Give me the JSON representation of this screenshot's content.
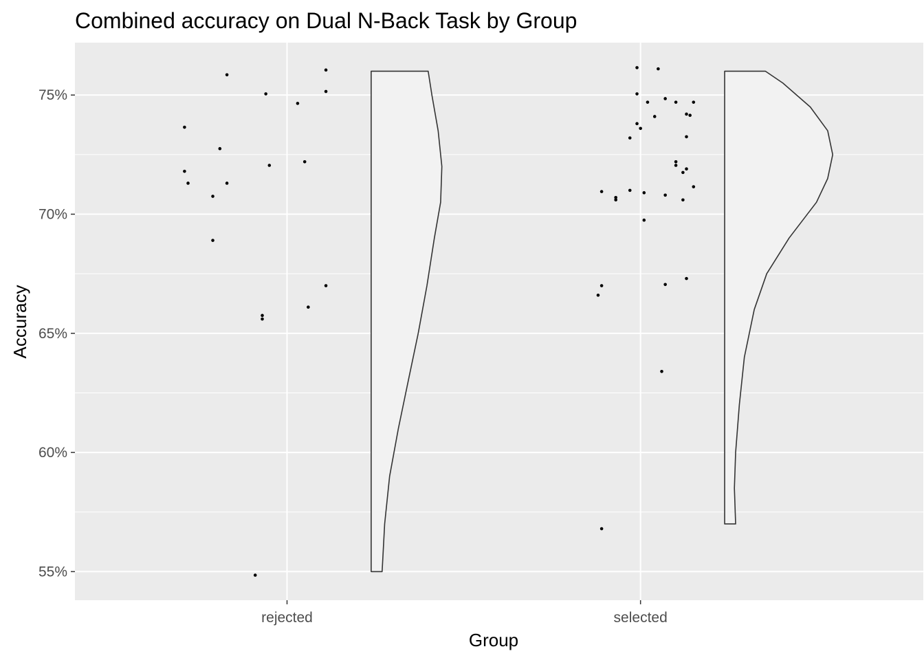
{
  "chart_data": {
    "type": "raincloud",
    "title": "Combined accuracy on Dual N-Back Task by Group",
    "xlabel": "Group",
    "ylabel": "Accuracy",
    "categories": [
      "rejected",
      "selected"
    ],
    "ylim": [
      53.8,
      77.2
    ],
    "yticks": [
      55,
      60,
      65,
      70,
      75
    ],
    "ytick_labels": [
      "55%",
      "60%",
      "65%",
      "70%",
      "75%"
    ],
    "grid": true,
    "panel_color": "#ebebeb",
    "violin_fill": "#f2f2f2",
    "violin_line": "#333333",
    "point_color": "#000000",
    "series": [
      {
        "category": "rejected",
        "points": [
          {
            "jitter": -0.29,
            "y": 73.65
          },
          {
            "jitter": -0.17,
            "y": 75.85
          },
          {
            "jitter": -0.06,
            "y": 75.05
          },
          {
            "jitter": 0.03,
            "y": 74.65
          },
          {
            "jitter": 0.11,
            "y": 76.05
          },
          {
            "jitter": 0.11,
            "y": 75.15
          },
          {
            "jitter": -0.29,
            "y": 71.8
          },
          {
            "jitter": -0.28,
            "y": 71.3
          },
          {
            "jitter": -0.19,
            "y": 72.75
          },
          {
            "jitter": -0.21,
            "y": 70.75
          },
          {
            "jitter": -0.17,
            "y": 71.3
          },
          {
            "jitter": -0.05,
            "y": 72.05
          },
          {
            "jitter": 0.05,
            "y": 72.2
          },
          {
            "jitter": -0.21,
            "y": 68.9
          },
          {
            "jitter": 0.11,
            "y": 67.0
          },
          {
            "jitter": -0.07,
            "y": 65.75
          },
          {
            "jitter": -0.07,
            "y": 65.6
          },
          {
            "jitter": 0.06,
            "y": 66.1
          },
          {
            "jitter": -0.09,
            "y": 54.85
          }
        ],
        "density": [
          {
            "y": 55.0,
            "d": 0.02
          },
          {
            "y": 57.0,
            "d": 0.04
          },
          {
            "y": 59.0,
            "d": 0.08
          },
          {
            "y": 61.0,
            "d": 0.15
          },
          {
            "y": 63.0,
            "d": 0.23
          },
          {
            "y": 65.0,
            "d": 0.31
          },
          {
            "y": 67.0,
            "d": 0.38
          },
          {
            "y": 69.0,
            "d": 0.44
          },
          {
            "y": 70.5,
            "d": 0.49
          },
          {
            "y": 72.0,
            "d": 0.5
          },
          {
            "y": 73.5,
            "d": 0.47
          },
          {
            "y": 75.0,
            "d": 0.42
          },
          {
            "y": 76.0,
            "d": 0.39
          }
        ]
      },
      {
        "category": "selected",
        "points": [
          {
            "jitter": -0.01,
            "y": 76.15
          },
          {
            "jitter": 0.05,
            "y": 76.1
          },
          {
            "jitter": -0.01,
            "y": 75.05
          },
          {
            "jitter": 0.02,
            "y": 74.7
          },
          {
            "jitter": 0.07,
            "y": 74.85
          },
          {
            "jitter": 0.1,
            "y": 74.7
          },
          {
            "jitter": 0.15,
            "y": 74.7
          },
          {
            "jitter": 0.04,
            "y": 74.1
          },
          {
            "jitter": 0.13,
            "y": 74.2
          },
          {
            "jitter": 0.14,
            "y": 74.15
          },
          {
            "jitter": -0.01,
            "y": 73.8
          },
          {
            "jitter": 0.0,
            "y": 73.6
          },
          {
            "jitter": -0.03,
            "y": 73.2
          },
          {
            "jitter": 0.13,
            "y": 73.25
          },
          {
            "jitter": 0.1,
            "y": 72.2
          },
          {
            "jitter": 0.1,
            "y": 72.05
          },
          {
            "jitter": 0.13,
            "y": 71.9
          },
          {
            "jitter": 0.12,
            "y": 71.75
          },
          {
            "jitter": 0.15,
            "y": 71.15
          },
          {
            "jitter": -0.11,
            "y": 70.95
          },
          {
            "jitter": -0.03,
            "y": 71.0
          },
          {
            "jitter": 0.01,
            "y": 70.9
          },
          {
            "jitter": 0.07,
            "y": 70.8
          },
          {
            "jitter": -0.07,
            "y": 70.7
          },
          {
            "jitter": -0.07,
            "y": 70.6
          },
          {
            "jitter": 0.12,
            "y": 70.6
          },
          {
            "jitter": 0.01,
            "y": 69.75
          },
          {
            "jitter": -0.11,
            "y": 67.0
          },
          {
            "jitter": -0.12,
            "y": 66.6
          },
          {
            "jitter": 0.07,
            "y": 67.05
          },
          {
            "jitter": 0.13,
            "y": 67.3
          },
          {
            "jitter": 0.06,
            "y": 63.4
          },
          {
            "jitter": -0.11,
            "y": 56.8
          }
        ],
        "density": [
          {
            "y": 57.0,
            "d": 0.02
          },
          {
            "y": 58.5,
            "d": 0.01
          },
          {
            "y": 60.0,
            "d": 0.02
          },
          {
            "y": 62.0,
            "d": 0.05
          },
          {
            "y": 64.0,
            "d": 0.09
          },
          {
            "y": 66.0,
            "d": 0.17
          },
          {
            "y": 67.5,
            "d": 0.27
          },
          {
            "y": 69.0,
            "d": 0.45
          },
          {
            "y": 70.5,
            "d": 0.67
          },
          {
            "y": 71.5,
            "d": 0.76
          },
          {
            "y": 72.5,
            "d": 0.8
          },
          {
            "y": 73.5,
            "d": 0.76
          },
          {
            "y": 74.5,
            "d": 0.62
          },
          {
            "y": 75.5,
            "d": 0.4
          },
          {
            "y": 76.0,
            "d": 0.26
          }
        ]
      }
    ]
  }
}
